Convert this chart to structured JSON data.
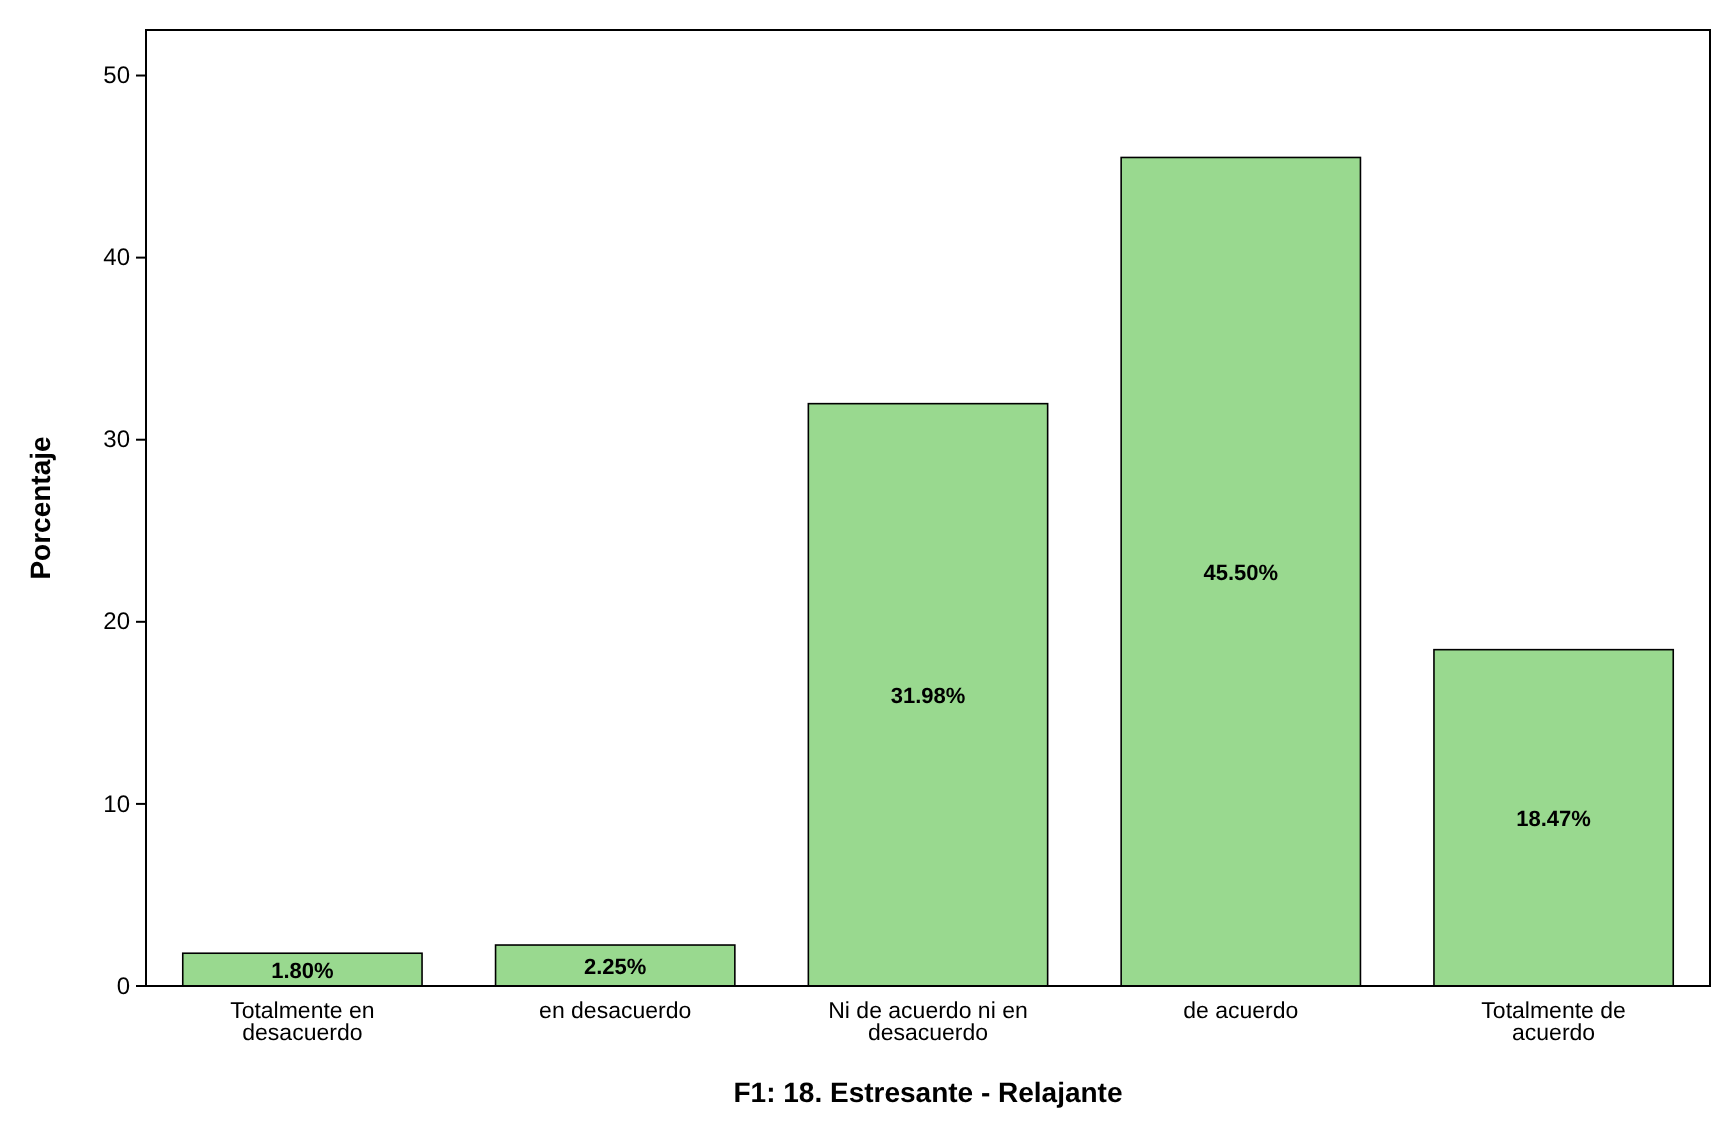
{
  "chart_data": {
    "type": "bar",
    "xlabel": "F1: 18. Estresante - Relajante",
    "ylabel": "Porcentaje",
    "categories": [
      "Totalmente en desacuerdo",
      "en desacuerdo",
      "Ni de acuerdo ni en desacuerdo",
      "de acuerdo",
      "Totalmente de acuerdo"
    ],
    "values": [
      1.8,
      2.25,
      31.98,
      45.5,
      18.47
    ],
    "value_labels": [
      "1.80%",
      "2.25%",
      "31.98%",
      "45.50%",
      "18.47%"
    ],
    "color": "#99d98f",
    "ylim": [
      0,
      52.5
    ],
    "yticks": [
      0,
      10,
      20,
      30,
      40,
      50
    ],
    "grid": false
  }
}
